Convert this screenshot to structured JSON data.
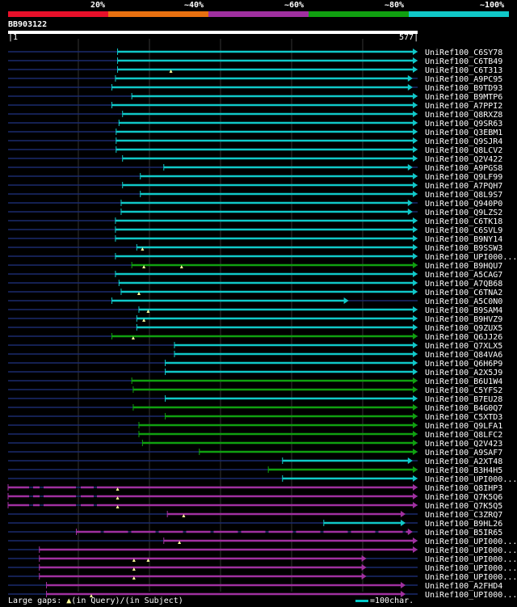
{
  "scale_labels": [
    "20%",
    "~40%",
    "~60%",
    "~80%",
    "~100%"
  ],
  "colors": {
    "bin1": "#e8102a",
    "bin2": "#e87010",
    "bin3": "#a030a0",
    "bin4": "#10a010",
    "bin5": "#10c8c8",
    "background": "#000000",
    "gridline": "#333333",
    "unaligned": "#1a2a6e"
  },
  "query": {
    "id": "BB903122",
    "start": "1",
    "end": "577",
    "length": 577
  },
  "hits": [
    {
      "name": "UniRef100_C6SY78",
      "start": 155,
      "end": 577,
      "color": "cyan",
      "gaps": []
    },
    {
      "name": "UniRef100_C6TB49",
      "start": 155,
      "end": 577,
      "color": "cyan",
      "gaps": []
    },
    {
      "name": "UniRef100_C6T313",
      "start": 155,
      "end": 577,
      "color": "cyan",
      "gaps": [
        230
      ]
    },
    {
      "name": "UniRef100_A9PC95",
      "start": 152,
      "end": 570,
      "color": "cyan",
      "gaps": []
    },
    {
      "name": "UniRef100_B9TD93",
      "start": 147,
      "end": 570,
      "color": "cyan",
      "gaps": []
    },
    {
      "name": "UniRef100_B9MTP6",
      "start": 175,
      "end": 577,
      "color": "cyan",
      "gaps": []
    },
    {
      "name": "UniRef100_A7PPI2",
      "start": 147,
      "end": 577,
      "color": "cyan",
      "gaps": []
    },
    {
      "name": "UniRef100_Q8RXZ8",
      "start": 162,
      "end": 577,
      "color": "cyan",
      "gaps": []
    },
    {
      "name": "UniRef100_Q9SR63",
      "start": 157,
      "end": 577,
      "color": "cyan",
      "gaps": []
    },
    {
      "name": "UniRef100_Q3EBM1",
      "start": 153,
      "end": 577,
      "color": "cyan",
      "gaps": []
    },
    {
      "name": "UniRef100_Q9SJR4",
      "start": 153,
      "end": 577,
      "color": "cyan",
      "gaps": []
    },
    {
      "name": "UniRef100_Q8LCV2",
      "start": 153,
      "end": 577,
      "color": "cyan",
      "gaps": []
    },
    {
      "name": "UniRef100_Q2V422",
      "start": 162,
      "end": 577,
      "color": "cyan",
      "gaps": []
    },
    {
      "name": "UniRef100_A9PGS8",
      "start": 220,
      "end": 570,
      "color": "cyan",
      "gaps": []
    },
    {
      "name": "UniRef100_Q9LF99",
      "start": 187,
      "end": 577,
      "color": "cyan",
      "gaps": []
    },
    {
      "name": "UniRef100_A7PQH7",
      "start": 162,
      "end": 577,
      "color": "cyan",
      "gaps": []
    },
    {
      "name": "UniRef100_Q8L9S7",
      "start": 187,
      "end": 577,
      "color": "cyan",
      "gaps": []
    },
    {
      "name": "UniRef100_Q940P0",
      "start": 160,
      "end": 570,
      "color": "cyan",
      "gaps": []
    },
    {
      "name": "UniRef100_Q9LZS2",
      "start": 160,
      "end": 570,
      "color": "cyan",
      "gaps": []
    },
    {
      "name": "UniRef100_C6TK18",
      "start": 152,
      "end": 577,
      "color": "cyan",
      "gaps": []
    },
    {
      "name": "UniRef100_C6SVL9",
      "start": 152,
      "end": 577,
      "color": "cyan",
      "gaps": []
    },
    {
      "name": "UniRef100_B9NY14",
      "start": 152,
      "end": 577,
      "color": "cyan",
      "gaps": []
    },
    {
      "name": "UniRef100_B9SSW3",
      "start": 182,
      "end": 577,
      "color": "cyan",
      "gaps": [
        190
      ]
    },
    {
      "name": "UniRef100_UPI000...",
      "start": 152,
      "end": 577,
      "color": "cyan",
      "gaps": []
    },
    {
      "name": "UniRef100_B9HQU7",
      "start": 175,
      "end": 577,
      "color": "green",
      "gaps": [
        192,
        245
      ]
    },
    {
      "name": "UniRef100_A5CAG7",
      "start": 152,
      "end": 577,
      "color": "cyan",
      "gaps": []
    },
    {
      "name": "UniRef100_A7QB68",
      "start": 157,
      "end": 577,
      "color": "cyan",
      "gaps": []
    },
    {
      "name": "UniRef100_C6TNA2",
      "start": 160,
      "end": 577,
      "color": "cyan",
      "gaps": [
        185
      ]
    },
    {
      "name": "UniRef100_A5C0N0",
      "start": 147,
      "end": 480,
      "color": "cyan",
      "gaps": []
    },
    {
      "name": "UniRef100_B9SAM4",
      "start": 185,
      "end": 577,
      "color": "cyan",
      "gaps": [
        198
      ]
    },
    {
      "name": "UniRef100_B9HVZ9",
      "start": 182,
      "end": 577,
      "color": "cyan",
      "gaps": [
        192
      ]
    },
    {
      "name": "UniRef100_Q9ZUX5",
      "start": 182,
      "end": 577,
      "color": "cyan",
      "gaps": []
    },
    {
      "name": "UniRef100_Q6JJ26",
      "start": 147,
      "end": 577,
      "color": "green",
      "gaps": [
        177
      ]
    },
    {
      "name": "UniRef100_Q7XLX5",
      "start": 235,
      "end": 577,
      "color": "cyan",
      "gaps": []
    },
    {
      "name": "UniRef100_Q84VA6",
      "start": 235,
      "end": 577,
      "color": "cyan",
      "gaps": []
    },
    {
      "name": "UniRef100_Q6H6P9",
      "start": 222,
      "end": 577,
      "color": "cyan",
      "gaps": []
    },
    {
      "name": "UniRef100_A2X5J9",
      "start": 222,
      "end": 577,
      "color": "cyan",
      "gaps": []
    },
    {
      "name": "UniRef100_B6U1W4",
      "start": 175,
      "end": 577,
      "color": "green",
      "gaps": []
    },
    {
      "name": "UniRef100_C5YFS2",
      "start": 177,
      "end": 577,
      "color": "green",
      "gaps": []
    },
    {
      "name": "UniRef100_B7EU28",
      "start": 222,
      "end": 577,
      "color": "cyan",
      "gaps": []
    },
    {
      "name": "UniRef100_B4G0Q7",
      "start": 177,
      "end": 577,
      "color": "green",
      "gaps": []
    },
    {
      "name": "UniRef100_C5XTD3",
      "start": 222,
      "end": 577,
      "color": "green",
      "gaps": []
    },
    {
      "name": "UniRef100_Q9LFA1",
      "start": 185,
      "end": 577,
      "color": "green",
      "gaps": []
    },
    {
      "name": "UniRef100_Q8LFC2",
      "start": 185,
      "end": 577,
      "color": "green",
      "gaps": []
    },
    {
      "name": "UniRef100_Q2V423",
      "start": 190,
      "end": 577,
      "color": "green",
      "gaps": []
    },
    {
      "name": "UniRef100_A9SAF7",
      "start": 270,
      "end": 577,
      "color": "green",
      "gaps": []
    },
    {
      "name": "UniRef100_A2XT48",
      "start": 387,
      "end": 570,
      "color": "cyan",
      "gaps": []
    },
    {
      "name": "UniRef100_B3H4H5",
      "start": 367,
      "end": 577,
      "color": "green",
      "gaps": []
    },
    {
      "name": "UniRef100_UPI000...",
      "start": 387,
      "end": 577,
      "color": "cyan",
      "gaps": []
    },
    {
      "name": "UniRef100_Q8IHP3",
      "start": 1,
      "end": 577,
      "color": "purple",
      "gaps": [
        155
      ],
      "pre_dash": true
    },
    {
      "name": "UniRef100_Q7K5Q6",
      "start": 1,
      "end": 577,
      "color": "purple",
      "gaps": [
        155
      ],
      "pre_dash": true
    },
    {
      "name": "UniRef100_Q7K5Q5",
      "start": 1,
      "end": 577,
      "color": "purple",
      "gaps": [
        155
      ],
      "pre_dash": true
    },
    {
      "name": "UniRef100_C3ZRQ7",
      "start": 225,
      "end": 560,
      "color": "purple",
      "gaps": [
        248
      ]
    },
    {
      "name": "UniRef100_B9HL26",
      "start": 445,
      "end": 560,
      "color": "cyan",
      "gaps": []
    },
    {
      "name": "UniRef100_B5IR65",
      "start": 97,
      "end": 570,
      "color": "purple",
      "gaps": [],
      "dashed": true
    },
    {
      "name": "UniRef100_UPI000...",
      "start": 220,
      "end": 577,
      "color": "purple",
      "gaps": [
        242
      ]
    },
    {
      "name": "UniRef100_UPI000...",
      "start": 45,
      "end": 577,
      "color": "purple",
      "gaps": []
    },
    {
      "name": "UniRef100_UPI000...",
      "start": 45,
      "end": 505,
      "color": "purple",
      "gaps": [
        178,
        198
      ]
    },
    {
      "name": "UniRef100_UPI000...",
      "start": 45,
      "end": 505,
      "color": "purple",
      "gaps": [
        178
      ]
    },
    {
      "name": "UniRef100_UPI000...",
      "start": 45,
      "end": 505,
      "color": "purple",
      "gaps": [
        178
      ]
    },
    {
      "name": "UniRef100_A2FHD4",
      "start": 55,
      "end": 560,
      "color": "purple",
      "gaps": []
    },
    {
      "name": "UniRef100_UPI000...",
      "start": 55,
      "end": 560,
      "color": "purple",
      "gaps": [
        118
      ]
    }
  ],
  "legend": {
    "large_gaps": "Large gaps:",
    "in_query": "(in Query)/",
    "in_subject": "(in Subject)",
    "scale_note": "=100char."
  }
}
